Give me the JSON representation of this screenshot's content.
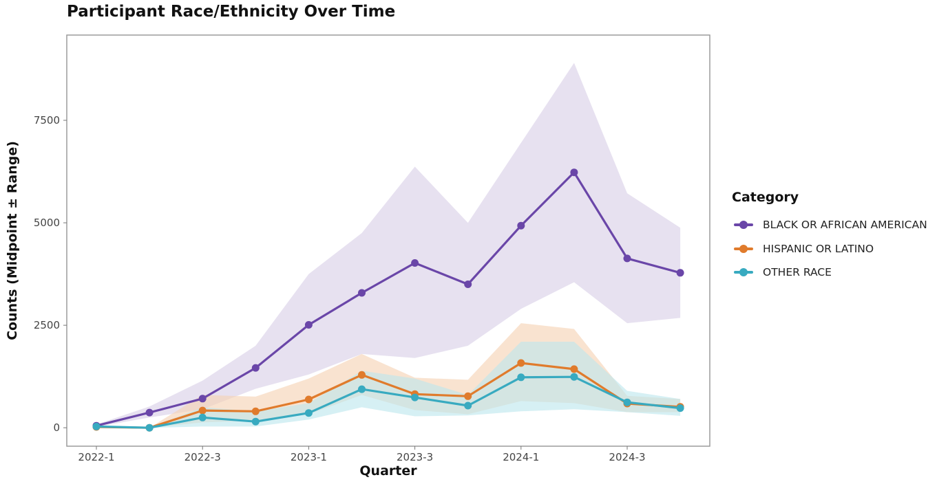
{
  "chart_data": {
    "type": "line",
    "title": "Participant Race/Ethnicity Over Time",
    "xlabel": "Quarter",
    "ylabel": "Counts (Midpoint ± Range)",
    "x": [
      "2022-1",
      "2022-2",
      "2022-3",
      "2022-4",
      "2023-1",
      "2023-2",
      "2023-3",
      "2023-4",
      "2024-1",
      "2024-2",
      "2024-3",
      "2024-4"
    ],
    "x_tick_labels": [
      "2022-1",
      "2022-3",
      "2023-1",
      "2023-3",
      "2024-1",
      "2024-3"
    ],
    "y_ticks": [
      0,
      2500,
      5000,
      7500
    ],
    "y_tick_labels": [
      "0",
      "2500",
      "5000",
      "7500"
    ],
    "ylim": [
      -450,
      9580
    ],
    "grid": false,
    "legend_position": "right",
    "legend_title": "Category",
    "series": [
      {
        "name": "BLACK OR AFRICAN AMERICAN",
        "color": "#6a46a8",
        "band_color": "#d8cfe6",
        "values": [
          50,
          370,
          710,
          1460,
          2510,
          3290,
          4020,
          3500,
          4930,
          6230,
          4130,
          3780
        ],
        "lower": [
          20,
          250,
          450,
          950,
          1300,
          1800,
          1700,
          2000,
          2900,
          3550,
          2550,
          2680
        ],
        "upper": [
          80,
          520,
          1150,
          2000,
          3750,
          4750,
          6370,
          5000,
          6950,
          8900,
          5720,
          4880
        ]
      },
      {
        "name": "HISPANIC OR LATINO",
        "color": "#e07b2c",
        "band_color": "#f6d2b3",
        "values": [
          20,
          0,
          420,
          400,
          690,
          1290,
          820,
          770,
          1580,
          1430,
          590,
          510
        ],
        "lower": [
          0,
          0,
          130,
          170,
          330,
          800,
          430,
          330,
          650,
          600,
          380,
          380
        ],
        "upper": [
          40,
          0,
          800,
          760,
          1200,
          1800,
          1220,
          1170,
          2550,
          2410,
          780,
          700
        ]
      },
      {
        "name": "OTHER RACE",
        "color": "#38aac0",
        "band_color": "#bde6ee",
        "values": [
          30,
          0,
          250,
          150,
          360,
          940,
          740,
          540,
          1230,
          1240,
          620,
          480
        ],
        "lower": [
          0,
          0,
          30,
          30,
          200,
          500,
          280,
          300,
          400,
          450,
          380,
          290
        ],
        "upper": [
          60,
          0,
          500,
          400,
          600,
          1390,
          1200,
          800,
          2100,
          2100,
          900,
          700
        ]
      }
    ]
  }
}
